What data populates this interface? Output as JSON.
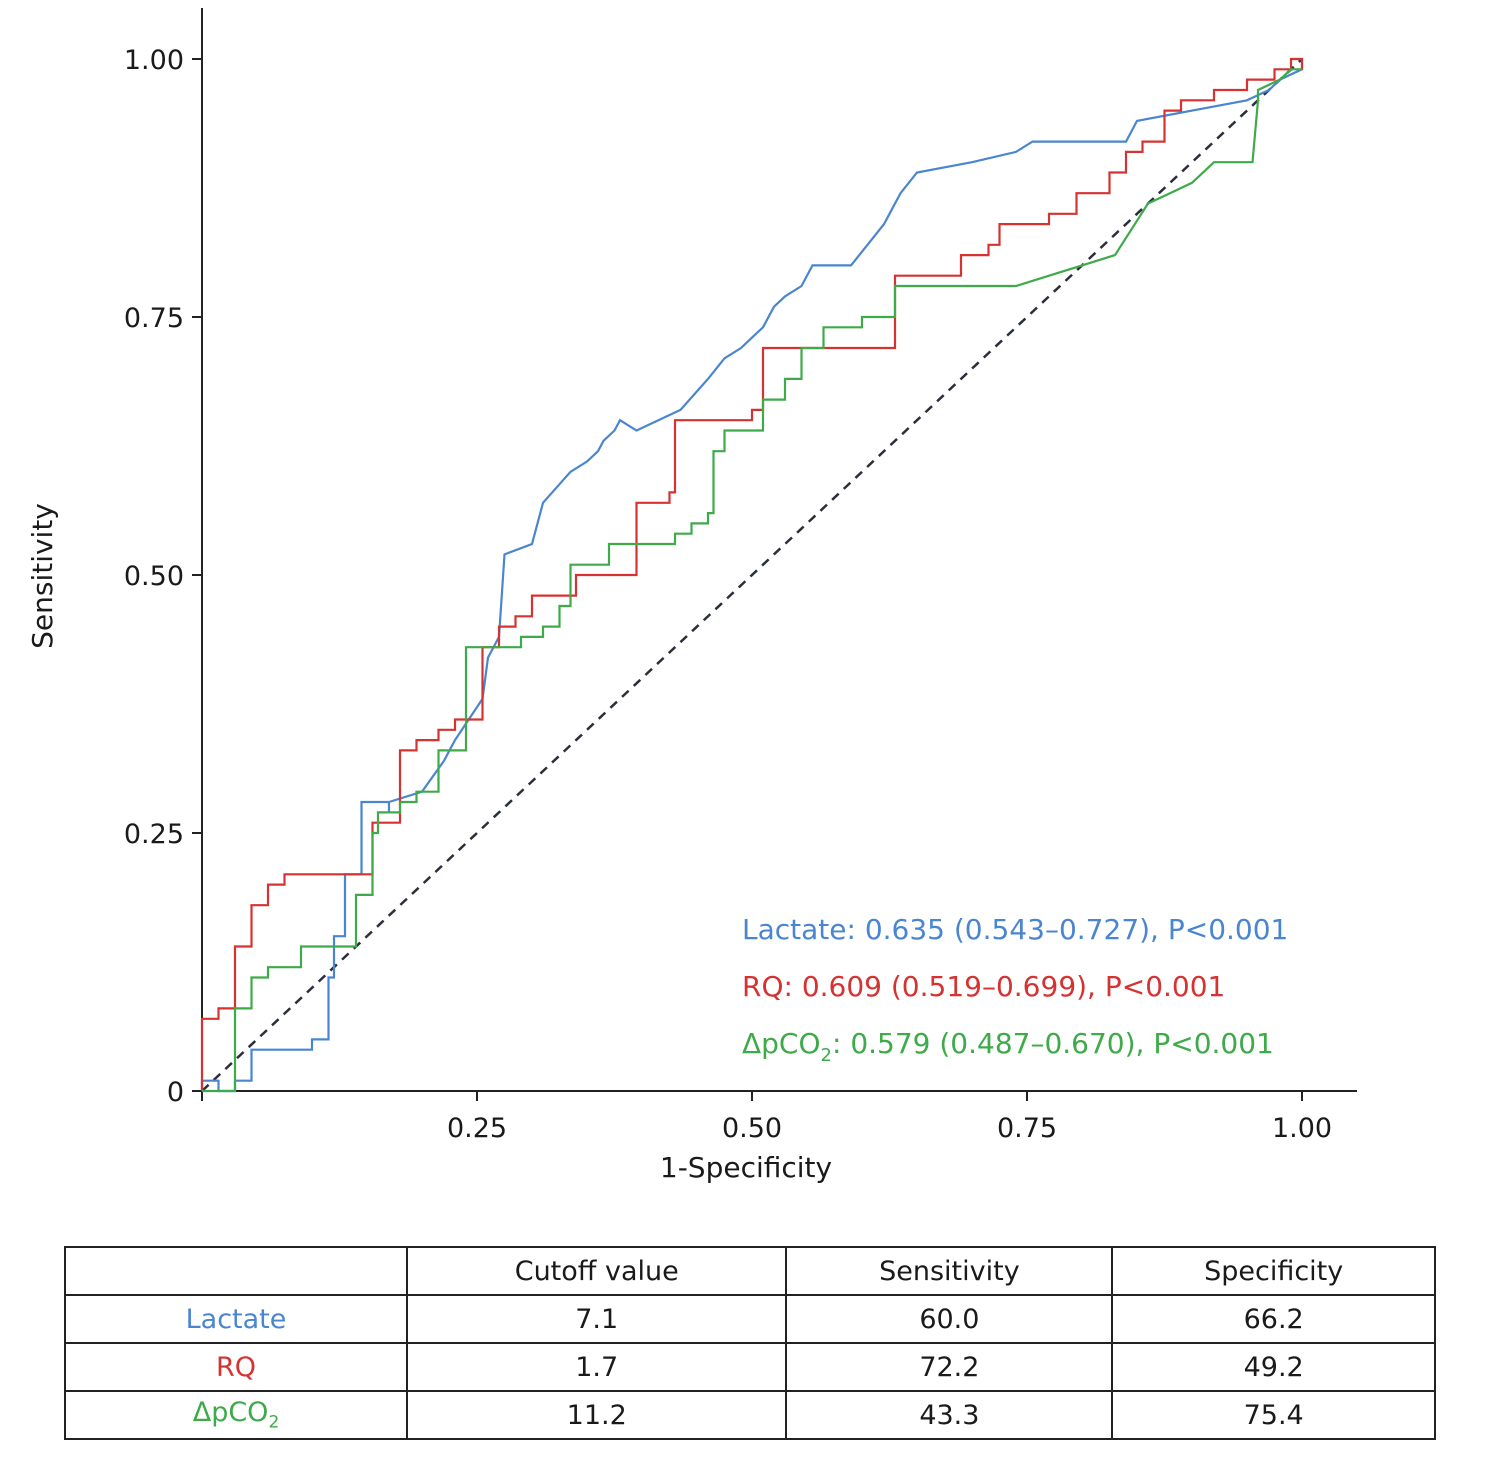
{
  "chart_data": {
    "type": "line",
    "xlabel": "1-Specificity",
    "ylabel": "Sensitivity",
    "xlim": [
      0,
      1
    ],
    "ylim": [
      0,
      1
    ],
    "x_ticks": [
      {
        "value": 0.25,
        "label": "0.25"
      },
      {
        "value": 0.5,
        "label": "0.50"
      },
      {
        "value": 0.75,
        "label": "0.75"
      },
      {
        "value": 1.0,
        "label": "1.00"
      }
    ],
    "y_ticks": [
      {
        "value": 0,
        "label": "0"
      },
      {
        "value": 0.25,
        "label": "0.25"
      },
      {
        "value": 0.5,
        "label": "0.50"
      },
      {
        "value": 0.75,
        "label": "0.75"
      },
      {
        "value": 1.0,
        "label": "1.00"
      }
    ],
    "reference_line": {
      "x": [
        0,
        1
      ],
      "y": [
        0,
        1
      ],
      "style": "dashed",
      "color": "#2b2f3a"
    },
    "series": [
      {
        "name": "Lactate",
        "color": "#4a86d0",
        "x": [
          0,
          0,
          0.015,
          0.015,
          0.03,
          0.03,
          0.045,
          0.045,
          0.1,
          0.1,
          0.115,
          0.115,
          0.12,
          0.12,
          0.13,
          0.13,
          0.145,
          0.145,
          0.17,
          0.17,
          0.17,
          0.17,
          0.17,
          0.2,
          0.2,
          0.22,
          0.22,
          0.23,
          0.23,
          0.255,
          0.255,
          0.26,
          0.26,
          0.27,
          0.27,
          0.275,
          0.275,
          0.3,
          0.3,
          0.31,
          0.31,
          0.335,
          0.335,
          0.35,
          0.35,
          0.36,
          0.36,
          0.365,
          0.365,
          0.375,
          0.375,
          0.38,
          0.38,
          0.395,
          0.395,
          0.435,
          0.435,
          0.46,
          0.46,
          0.475,
          0.475,
          0.49,
          0.49,
          0.5,
          0.5,
          0.51,
          0.51,
          0.52,
          0.52,
          0.53,
          0.53,
          0.545,
          0.545,
          0.555,
          0.555,
          0.59,
          0.59,
          0.605,
          0.605,
          0.62,
          0.62,
          0.635,
          0.635,
          0.65,
          0.65,
          0.7,
          0.7,
          0.74,
          0.74,
          0.755,
          0.755,
          0.84,
          0.84,
          0.85,
          0.85,
          0.95,
          0.95,
          0.97,
          0.97,
          0.98,
          0.98,
          1.0,
          1.0
        ],
        "y": [
          0,
          0.01,
          0.01,
          0.0,
          0.0,
          0.01,
          0.01,
          0.04,
          0.04,
          0.05,
          0.05,
          0.11,
          0.11,
          0.15,
          0.15,
          0.21,
          0.21,
          0.28,
          0.28,
          0.27,
          0.27,
          0.28,
          0.28,
          0.29,
          0.29,
          0.32,
          0.32,
          0.34,
          0.34,
          0.38,
          0.38,
          0.42,
          0.42,
          0.44,
          0.44,
          0.52,
          0.52,
          0.53,
          0.53,
          0.57,
          0.57,
          0.6,
          0.6,
          0.61,
          0.61,
          0.62,
          0.62,
          0.63,
          0.63,
          0.64,
          0.64,
          0.65,
          0.65,
          0.64,
          0.64,
          0.66,
          0.66,
          0.69,
          0.69,
          0.71,
          0.71,
          0.72,
          0.72,
          0.73,
          0.73,
          0.74,
          0.74,
          0.76,
          0.76,
          0.77,
          0.77,
          0.78,
          0.78,
          0.8,
          0.8,
          0.8,
          0.8,
          0.82,
          0.82,
          0.84,
          0.84,
          0.87,
          0.87,
          0.89,
          0.89,
          0.9,
          0.9,
          0.91,
          0.91,
          0.92,
          0.92,
          0.92,
          0.92,
          0.94,
          0.94,
          0.96,
          0.96,
          0.97,
          0.97,
          0.98,
          0.98,
          0.99,
          1.0
        ]
      },
      {
        "name": "RQ",
        "color": "#d63232",
        "x": [
          0,
          0,
          0.015,
          0.015,
          0.03,
          0.03,
          0.045,
          0.045,
          0.06,
          0.06,
          0.075,
          0.075,
          0.09,
          0.09,
          0.155,
          0.155,
          0.18,
          0.18,
          0.195,
          0.195,
          0.215,
          0.215,
          0.23,
          0.23,
          0.24,
          0.24,
          0.255,
          0.255,
          0.27,
          0.27,
          0.285,
          0.285,
          0.3,
          0.3,
          0.31,
          0.31,
          0.32,
          0.32,
          0.34,
          0.34,
          0.395,
          0.395,
          0.425,
          0.425,
          0.43,
          0.43,
          0.445,
          0.445,
          0.5,
          0.5,
          0.51,
          0.51,
          0.61,
          0.61,
          0.63,
          0.63,
          0.69,
          0.69,
          0.715,
          0.715,
          0.725,
          0.725,
          0.77,
          0.77,
          0.795,
          0.795,
          0.825,
          0.825,
          0.84,
          0.84,
          0.855,
          0.855,
          0.875,
          0.875,
          0.89,
          0.89,
          0.92,
          0.92,
          0.95,
          0.95,
          0.975,
          0.975,
          0.99,
          0.99,
          1.0,
          1.0
        ],
        "y": [
          0,
          0.07,
          0.07,
          0.08,
          0.08,
          0.14,
          0.14,
          0.18,
          0.18,
          0.2,
          0.2,
          0.21,
          0.21,
          0.21,
          0.21,
          0.26,
          0.26,
          0.33,
          0.33,
          0.34,
          0.34,
          0.35,
          0.35,
          0.36,
          0.36,
          0.36,
          0.36,
          0.43,
          0.43,
          0.45,
          0.45,
          0.46,
          0.46,
          0.48,
          0.48,
          0.48,
          0.48,
          0.48,
          0.48,
          0.5,
          0.5,
          0.57,
          0.57,
          0.58,
          0.58,
          0.65,
          0.65,
          0.65,
          0.65,
          0.66,
          0.66,
          0.72,
          0.72,
          0.72,
          0.72,
          0.79,
          0.79,
          0.81,
          0.81,
          0.82,
          0.82,
          0.84,
          0.84,
          0.85,
          0.85,
          0.87,
          0.87,
          0.89,
          0.89,
          0.91,
          0.91,
          0.92,
          0.92,
          0.95,
          0.95,
          0.96,
          0.96,
          0.97,
          0.97,
          0.98,
          0.98,
          0.99,
          0.99,
          1.0,
          1.0,
          0.99
        ]
      },
      {
        "name": "ΔpCO2",
        "color": "#3eaa4a",
        "x": [
          0,
          0,
          0.03,
          0.03,
          0.045,
          0.045,
          0.06,
          0.06,
          0.09,
          0.09,
          0.12,
          0.12,
          0.14,
          0.14,
          0.155,
          0.155,
          0.16,
          0.16,
          0.18,
          0.18,
          0.195,
          0.195,
          0.215,
          0.215,
          0.24,
          0.24,
          0.27,
          0.27,
          0.29,
          0.29,
          0.31,
          0.31,
          0.325,
          0.325,
          0.335,
          0.335,
          0.37,
          0.37,
          0.395,
          0.395,
          0.43,
          0.43,
          0.445,
          0.445,
          0.46,
          0.46,
          0.465,
          0.465,
          0.475,
          0.475,
          0.51,
          0.51,
          0.53,
          0.53,
          0.545,
          0.545,
          0.565,
          0.565,
          0.58,
          0.58,
          0.6,
          0.6,
          0.63,
          0.63,
          0.64,
          0.64,
          0.73,
          0.74,
          0.77,
          0.8,
          0.83,
          0.86,
          0.88,
          0.9,
          0.92,
          0.94,
          0.955,
          0.96,
          0.96,
          0.98,
          0.99,
          1.0
        ],
        "y": [
          0,
          0.0,
          0.0,
          0.08,
          0.08,
          0.11,
          0.11,
          0.12,
          0.12,
          0.14,
          0.14,
          0.14,
          0.14,
          0.19,
          0.19,
          0.25,
          0.25,
          0.27,
          0.27,
          0.28,
          0.28,
          0.29,
          0.29,
          0.33,
          0.33,
          0.43,
          0.43,
          0.43,
          0.43,
          0.44,
          0.44,
          0.45,
          0.45,
          0.47,
          0.47,
          0.51,
          0.51,
          0.53,
          0.53,
          0.53,
          0.53,
          0.54,
          0.54,
          0.55,
          0.55,
          0.56,
          0.56,
          0.62,
          0.62,
          0.64,
          0.64,
          0.67,
          0.67,
          0.69,
          0.69,
          0.72,
          0.72,
          0.74,
          0.74,
          0.74,
          0.74,
          0.75,
          0.75,
          0.78,
          0.78,
          0.78,
          0.78,
          0.78,
          0.79,
          0.8,
          0.81,
          0.86,
          0.87,
          0.88,
          0.9,
          0.9,
          0.9,
          0.96,
          0.97,
          0.98,
          0.99,
          0.99
        ]
      }
    ],
    "annotations": [
      {
        "text": "Lactate: 0.635 (0.543–0.727), P<0.001",
        "color": "#4a86d0"
      },
      {
        "text": "RQ: 0.609 (0.519–0.699), P<0.001",
        "color": "#d63232"
      },
      {
        "prefix": "ΔpCO",
        "sub": "2",
        "suffix": ": 0.579 (0.487–0.670), P<0.001",
        "color": "#3eaa4a"
      }
    ]
  },
  "table": {
    "headers": [
      "",
      "Cutoff value",
      "Sensitivity",
      "Specificity"
    ],
    "rows": [
      {
        "label": "Lactate",
        "color": "#4a86d0",
        "cutoff": "7.1",
        "sensitivity": "60.0",
        "specificity": "66.2"
      },
      {
        "label": "RQ",
        "color": "#d63232",
        "cutoff": "1.7",
        "sensitivity": "72.2",
        "specificity": "49.2"
      },
      {
        "label_prefix": "ΔpCO",
        "label_sub": "2",
        "color": "#3eaa4a",
        "cutoff": "11.2",
        "sensitivity": "43.3",
        "specificity": "75.4"
      }
    ]
  }
}
